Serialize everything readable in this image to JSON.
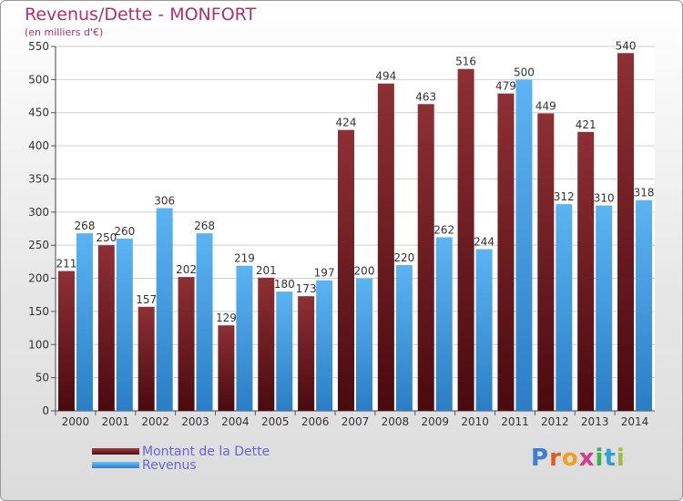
{
  "chart_data": {
    "type": "bar",
    "title": "Revenus/Dette - MONFORT",
    "subtitle": "(en milliers d'€)",
    "categories": [
      "2000",
      "2001",
      "2002",
      "2003",
      "2004",
      "2005",
      "2006",
      "2007",
      "2008",
      "2009",
      "2010",
      "2011",
      "2012",
      "2013",
      "2014"
    ],
    "series": [
      {
        "name": "Montant de la Dette",
        "color": "#7a2025",
        "values": [
          211,
          250,
          157,
          202,
          129,
          201,
          173,
          424,
          494,
          463,
          516,
          479,
          449,
          421,
          540
        ]
      },
      {
        "name": "Revenus",
        "color": "#3d9be0",
        "values": [
          268,
          260,
          306,
          268,
          219,
          180,
          197,
          200,
          220,
          262,
          244,
          500,
          312,
          310,
          318
        ]
      }
    ],
    "ylim": [
      0,
      550
    ],
    "yticks": [
      0,
      50,
      100,
      150,
      200,
      250,
      300,
      350,
      400,
      450,
      500,
      550
    ],
    "grid": true,
    "legend_position": "bottom-left"
  },
  "logo": {
    "text": "Proxiti",
    "colors": [
      "#3d7fd0",
      "#e05c2a",
      "#f0a020",
      "#d23c8c",
      "#3db04a",
      "#2ea0d8",
      "#9ac040"
    ]
  }
}
